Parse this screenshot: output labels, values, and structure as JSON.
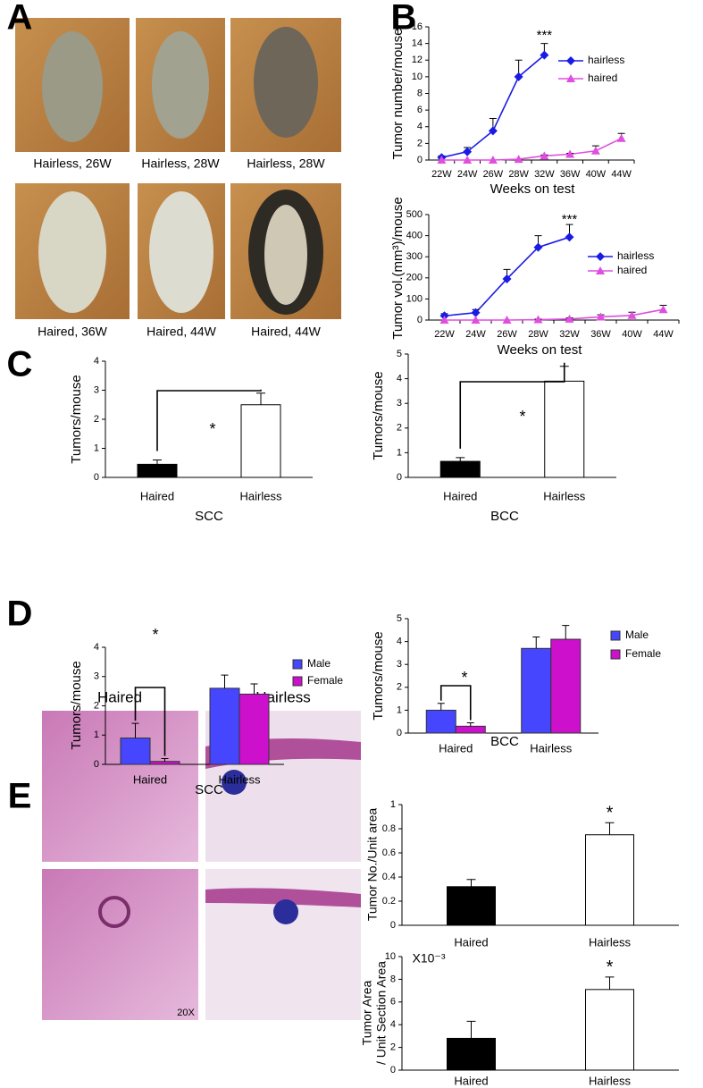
{
  "panel_labels": [
    "A",
    "B",
    "C",
    "D",
    "E"
  ],
  "photos_a": {
    "captions": [
      "Hairless, 26W",
      "Hairless, 28W",
      "Hairless, 28W",
      "Haired, 36W",
      "Haired, 44W",
      "Haired, 44W"
    ]
  },
  "photos_e": {
    "headers": [
      "Haired",
      "Hairless"
    ],
    "magnification": "20X"
  },
  "chart_data": [
    {
      "type": "line",
      "ylabel": "Tumor number/mouse",
      "xlabel": "Weeks on test",
      "annotation": "***",
      "categories": [
        "22W",
        "24W",
        "26W",
        "28W",
        "32W",
        "36W",
        "40W",
        "44W"
      ],
      "ylim": [
        0,
        16
      ],
      "yticks": [
        0,
        2,
        4,
        6,
        8,
        10,
        12,
        14,
        16
      ],
      "legend": "upper right",
      "series": [
        {
          "name": "hairless",
          "color": "#1a1ae6",
          "marker": "diamond",
          "values": [
            0.3,
            1.0,
            3.5,
            10,
            12.6,
            null,
            null,
            null
          ],
          "errors": [
            0.2,
            0.5,
            1.5,
            2,
            1.4,
            null,
            null,
            null
          ]
        },
        {
          "name": "haired",
          "color": "#e04ee0",
          "marker": "triangle",
          "values": [
            0,
            0,
            0,
            0.1,
            0.5,
            0.7,
            1.1,
            2.6
          ],
          "errors": [
            0,
            0,
            0,
            0,
            0.1,
            0.1,
            0.6,
            0.6
          ]
        }
      ]
    },
    {
      "type": "line",
      "ylabel": "Tumor vol.(mm³)/mouse",
      "xlabel": "Weeks on test",
      "annotation": "***",
      "categories": [
        "22W",
        "24W",
        "26W",
        "28W",
        "32W",
        "36W",
        "40W",
        "44W"
      ],
      "ylim": [
        0,
        500
      ],
      "yticks": [
        0,
        100,
        200,
        300,
        400,
        500
      ],
      "legend": "upper right",
      "series": [
        {
          "name": "hairless",
          "color": "#1a1ae6",
          "marker": "diamond",
          "values": [
            20,
            35,
            195,
            345,
            393,
            null,
            null,
            null
          ],
          "errors": [
            10,
            15,
            45,
            55,
            60,
            null,
            null,
            null
          ]
        },
        {
          "name": "haired",
          "color": "#e04ee0",
          "marker": "triangle",
          "values": [
            0,
            0,
            0,
            2,
            5,
            15,
            22,
            50
          ],
          "errors": [
            0,
            0,
            0,
            2,
            5,
            10,
            15,
            20
          ]
        }
      ]
    },
    {
      "type": "bar",
      "ylabel": "Tumors/mouse",
      "xlabel": "SCC",
      "annotation": "*",
      "categories": [
        "Haired",
        "Hairless"
      ],
      "values": [
        0.45,
        2.5
      ],
      "errors": [
        0.15,
        0.4
      ],
      "colors": [
        "#000000",
        "#ffffff"
      ],
      "ylim": [
        0,
        4
      ],
      "yticks": [
        0,
        1,
        2,
        3,
        4
      ]
    },
    {
      "type": "bar",
      "ylabel": "Tumors/mouse",
      "xlabel": "BCC",
      "annotation": "*",
      "categories": [
        "Haired",
        "Hairless"
      ],
      "values": [
        0.65,
        3.9
      ],
      "errors": [
        0.15,
        0.6
      ],
      "colors": [
        "#000000",
        "#ffffff"
      ],
      "ylim": [
        0,
        5
      ],
      "yticks": [
        0,
        1,
        2,
        3,
        4,
        5
      ]
    },
    {
      "type": "grouped_bar",
      "ylabel": "Tumors/mouse",
      "xlabel": "SCC",
      "annotation": "*",
      "categories": [
        "Haired",
        "Hairless"
      ],
      "ylim": [
        0,
        4
      ],
      "yticks": [
        0,
        1,
        2,
        3,
        4
      ],
      "legend": "right",
      "series": [
        {
          "name": "Male",
          "color": "#4646ff",
          "values": [
            0.9,
            2.6
          ],
          "errors": [
            0.5,
            0.45
          ]
        },
        {
          "name": "Female",
          "color": "#cc10cc",
          "values": [
            0.1,
            2.4
          ],
          "errors": [
            0.1,
            0.35
          ]
        }
      ]
    },
    {
      "type": "grouped_bar",
      "ylabel": "Tumors/mouse",
      "xlabel": "BCC",
      "annotation": "*",
      "categories": [
        "Haired",
        "Hairless"
      ],
      "ylim": [
        0,
        5
      ],
      "yticks": [
        0,
        1,
        2,
        3,
        4,
        5
      ],
      "legend": "right",
      "series": [
        {
          "name": "Male",
          "color": "#4646ff",
          "values": [
            1.0,
            3.7
          ],
          "errors": [
            0.3,
            0.5
          ]
        },
        {
          "name": "Female",
          "color": "#cc10cc",
          "values": [
            0.3,
            4.1
          ],
          "errors": [
            0.15,
            0.6
          ]
        }
      ]
    },
    {
      "type": "bar",
      "ylabel": [
        "Tumor No./Unit area"
      ],
      "annotation": "*",
      "categories": [
        "Haired",
        "Hairless"
      ],
      "values": [
        0.32,
        0.75
      ],
      "errors": [
        0.06,
        0.1
      ],
      "colors": [
        "#000000",
        "#ffffff"
      ],
      "ylim": [
        0,
        1
      ],
      "yticks": [
        0,
        0.2,
        0.4,
        0.6,
        0.8,
        1
      ]
    },
    {
      "type": "bar",
      "ylabel": [
        "Tumor Area",
        "/ Unit Section Area"
      ],
      "annotation": "*",
      "scale_note": "X10⁻³",
      "categories": [
        "Haired",
        "Hairless"
      ],
      "values": [
        2.8,
        7.1
      ],
      "errors": [
        1.5,
        1.1
      ],
      "colors": [
        "#000000",
        "#ffffff"
      ],
      "ylim": [
        0,
        10
      ],
      "yticks": [
        0,
        2,
        4,
        6,
        8,
        10
      ]
    }
  ]
}
